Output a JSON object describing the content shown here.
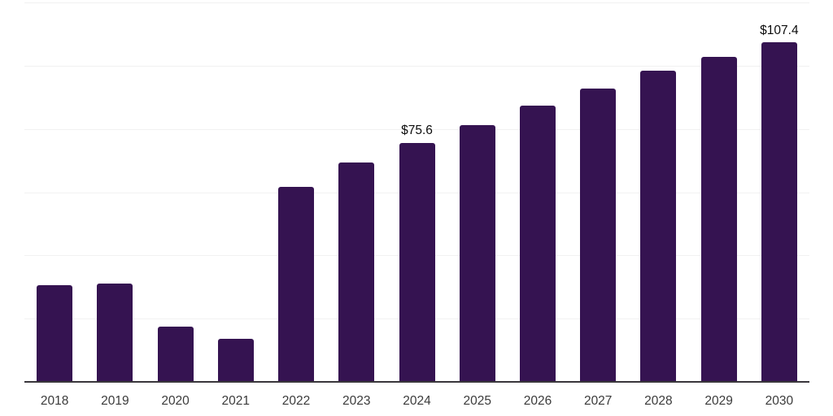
{
  "chart_data": {
    "type": "bar",
    "title": "",
    "xlabel": "",
    "ylabel": "",
    "categories": [
      "2018",
      "2019",
      "2020",
      "2021",
      "2022",
      "2023",
      "2024",
      "2025",
      "2026",
      "2027",
      "2028",
      "2029",
      "2030"
    ],
    "values": [
      30.6,
      31.2,
      17.6,
      13.6,
      61.7,
      69.4,
      75.6,
      81.2,
      87.4,
      92.8,
      98.4,
      102.9,
      107.4
    ],
    "bar_labels": [
      "",
      "",
      "",
      "",
      "",
      "",
      "$75.6",
      "",
      "",
      "",
      "",
      "",
      "$107.4"
    ],
    "ylim": [
      0,
      120
    ],
    "gridline_values": [
      20,
      40,
      60,
      80,
      100,
      120
    ],
    "grid": true,
    "legend": false,
    "y_axis_labels_visible": false,
    "colors": {
      "bar": "#351351",
      "grid_line": "#f1f1f1",
      "axis_line": "#39363b",
      "tick_label": "#3b3b3b",
      "value_label": "#0c0c0c",
      "background": "#ffffff"
    }
  }
}
